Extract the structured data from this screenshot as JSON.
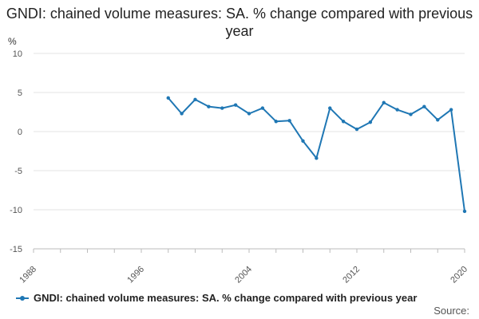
{
  "chart_data": {
    "type": "line",
    "title": "GNDI: chained volume measures: SA. % change compared with previous year",
    "ylabel": "%",
    "xlabel": "",
    "ylim": [
      -15,
      10
    ],
    "yticks": [
      10,
      5,
      0,
      -5,
      -10,
      -15
    ],
    "xlim": [
      1988,
      2020
    ],
    "xticks": [
      1988,
      1996,
      2004,
      2012,
      2020
    ],
    "series": [
      {
        "name": "GNDI: chained volume measures: SA. % change compared with previous year",
        "color": "#1f77b4",
        "x": [
          1998,
          1999,
          2000,
          2001,
          2002,
          2003,
          2004,
          2005,
          2006,
          2007,
          2008,
          2009,
          2010,
          2011,
          2012,
          2013,
          2014,
          2015,
          2016,
          2017,
          2018,
          2019,
          2020
        ],
        "values": [
          4.3,
          2.3,
          4.1,
          3.2,
          3.0,
          3.4,
          2.3,
          3.0,
          1.3,
          1.4,
          -1.2,
          -3.4,
          3.0,
          1.3,
          0.3,
          1.2,
          3.7,
          2.8,
          2.2,
          3.2,
          1.5,
          2.8,
          -10.2
        ]
      }
    ],
    "legend": "bottom-left",
    "source_label": "Source:"
  }
}
